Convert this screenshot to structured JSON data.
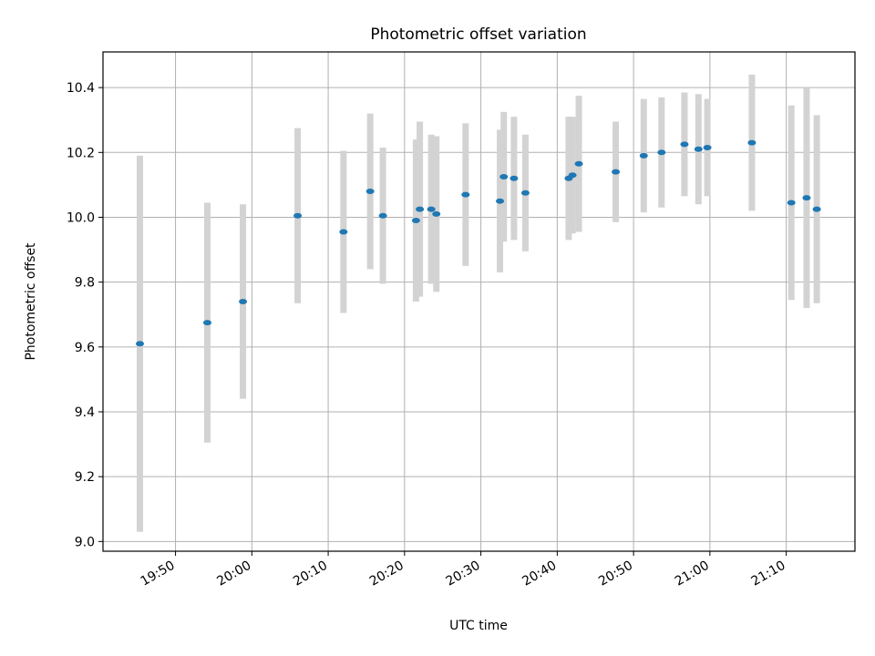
{
  "chart_data": {
    "type": "scatter",
    "title": "Photometric offset variation",
    "xlabel": "UTC time",
    "ylabel": "Photometric offset",
    "xlim": [
      "19:40:30",
      "21:19:00"
    ],
    "ylim": [
      8.97,
      10.51
    ],
    "x_ticks": [
      "19:50",
      "20:00",
      "20:10",
      "20:20",
      "20:30",
      "20:40",
      "20:50",
      "21:00",
      "21:10"
    ],
    "y_ticks": [
      "9.0",
      "9.2",
      "9.4",
      "9.6",
      "9.8",
      "10.0",
      "10.2",
      "10.4"
    ],
    "grid": true,
    "colors": {
      "point": "#1f77b4",
      "errorbar": "#d3d3d3",
      "grid": "#b0b0b0"
    },
    "series": [
      {
        "points": [
          {
            "x": "19:45:20",
            "y": 9.61,
            "err": 0.58
          },
          {
            "x": "19:54:10",
            "y": 9.675,
            "err": 0.37
          },
          {
            "x": "19:58:50",
            "y": 9.74,
            "err": 0.3
          },
          {
            "x": "20:06:00",
            "y": 10.005,
            "err": 0.27
          },
          {
            "x": "20:12:00",
            "y": 9.955,
            "err": 0.25
          },
          {
            "x": "20:15:30",
            "y": 10.08,
            "err": 0.24
          },
          {
            "x": "20:17:10",
            "y": 10.005,
            "err": 0.21
          },
          {
            "x": "20:21:30",
            "y": 9.99,
            "err": 0.25
          },
          {
            "x": "20:22:00",
            "y": 10.025,
            "err": 0.27
          },
          {
            "x": "20:23:30",
            "y": 10.025,
            "err": 0.23
          },
          {
            "x": "20:24:10",
            "y": 10.01,
            "err": 0.24
          },
          {
            "x": "20:28:00",
            "y": 10.07,
            "err": 0.22
          },
          {
            "x": "20:32:30",
            "y": 10.05,
            "err": 0.22
          },
          {
            "x": "20:33:00",
            "y": 10.125,
            "err": 0.2
          },
          {
            "x": "20:34:20",
            "y": 10.12,
            "err": 0.19
          },
          {
            "x": "20:35:50",
            "y": 10.075,
            "err": 0.18
          },
          {
            "x": "20:41:30",
            "y": 10.12,
            "err": 0.19
          },
          {
            "x": "20:42:00",
            "y": 10.13,
            "err": 0.18
          },
          {
            "x": "20:42:50",
            "y": 10.165,
            "err": 0.21
          },
          {
            "x": "20:47:40",
            "y": 10.14,
            "err": 0.155
          },
          {
            "x": "20:51:20",
            "y": 10.19,
            "err": 0.175
          },
          {
            "x": "20:53:40",
            "y": 10.2,
            "err": 0.17
          },
          {
            "x": "20:56:40",
            "y": 10.225,
            "err": 0.16
          },
          {
            "x": "20:58:30",
            "y": 10.21,
            "err": 0.17
          },
          {
            "x": "20:59:40",
            "y": 10.215,
            "err": 0.15
          },
          {
            "x": "21:05:30",
            "y": 10.23,
            "err": 0.21
          },
          {
            "x": "21:10:40",
            "y": 10.045,
            "err": 0.3
          },
          {
            "x": "21:12:40",
            "y": 10.06,
            "err": 0.34
          },
          {
            "x": "21:14:00",
            "y": 10.025,
            "err": 0.29
          }
        ]
      }
    ]
  }
}
